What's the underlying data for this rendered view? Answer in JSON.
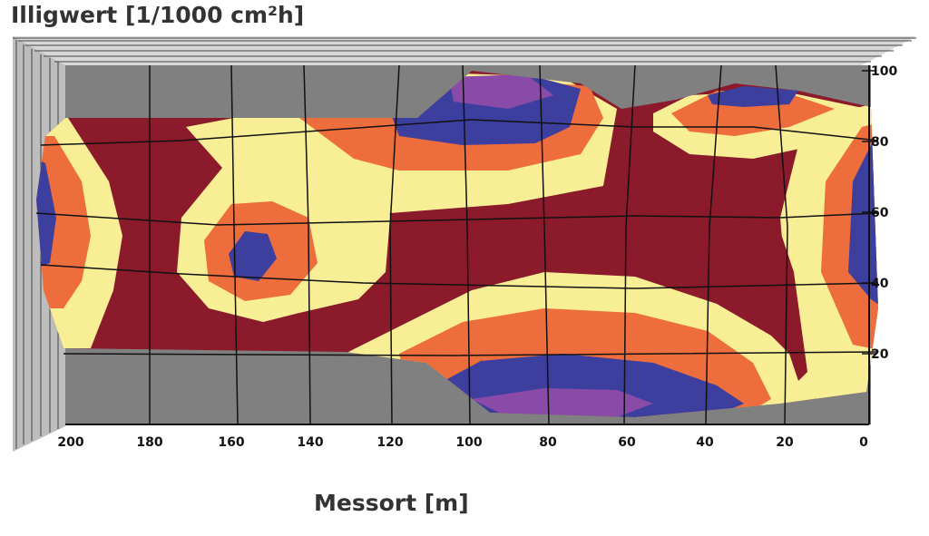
{
  "chart_data": {
    "type": "heatmap",
    "ylabel": "Illigwert [1/1000 cm²h]",
    "xlabel": "Messort [m]",
    "x_ticks": [
      "200",
      "180",
      "160",
      "140",
      "120",
      "100",
      "80",
      "60",
      "40",
      "20",
      "0"
    ],
    "y_ticks": [
      "20",
      "40",
      "60",
      "80",
      "100"
    ],
    "xlim": [
      200,
      0
    ],
    "ylim": [
      0,
      100
    ],
    "colors": {
      "background": "#808080",
      "band_darkred": "#8b1a2b",
      "band_yellow": "#f7ee96",
      "band_orange": "#ee6d3d",
      "band_blue": "#3d3f9f",
      "band_purple": "#8a4aa8",
      "grid": "#111111"
    }
  }
}
